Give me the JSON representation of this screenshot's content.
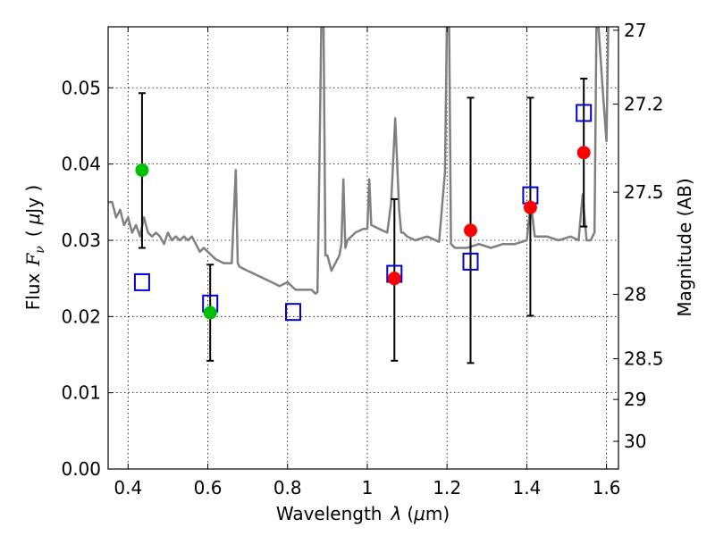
{
  "chart_data": {
    "type": "scatter",
    "xlabel": "Wavelength",
    "xlabel_symbol": "λ",
    "xlabel_unit_open": "(",
    "xlabel_unit_mu": "μ",
    "xlabel_unit_rest": "m)",
    "ylabel": "Flux",
    "ylabel_symbol": "F",
    "ylabel_subscript": "ν",
    "ylabel_unit_open": "(",
    "ylabel_unit_mu": "μ",
    "ylabel_unit_rest": "Jy )",
    "y2label": "Magnitude (AB)",
    "xlim": [
      0.35,
      1.63
    ],
    "ylim": [
      0.0,
      0.058
    ],
    "grid": true,
    "x_ticks": [
      0.4,
      0.6,
      0.8,
      1.0,
      1.2,
      1.4,
      1.6
    ],
    "x_tick_labels": [
      "0.4",
      "0.6",
      "0.8",
      "1",
      "1.2",
      "1.4",
      "1.6"
    ],
    "y_ticks": [
      0.0,
      0.01,
      0.02,
      0.03,
      0.04,
      0.05
    ],
    "y_tick_labels": [
      "0.00",
      "0.01",
      "0.02",
      "0.03",
      "0.04",
      "0.05"
    ],
    "y2_ticks": [
      27,
      27.2,
      27.5,
      28,
      28.5,
      29,
      30
    ],
    "y2_tick_labels": [
      "27",
      "27.2",
      "27.5",
      "28",
      "28.5",
      "29",
      "30"
    ],
    "series": [
      {
        "name": "model spectrum",
        "kind": "line",
        "color": "#808080",
        "x": [
          0.35,
          0.36,
          0.37,
          0.38,
          0.39,
          0.4,
          0.41,
          0.42,
          0.43,
          0.44,
          0.45,
          0.46,
          0.47,
          0.48,
          0.49,
          0.5,
          0.51,
          0.52,
          0.53,
          0.54,
          0.55,
          0.56,
          0.57,
          0.58,
          0.59,
          0.6,
          0.62,
          0.64,
          0.66,
          0.67,
          0.675,
          0.68,
          0.7,
          0.72,
          0.74,
          0.76,
          0.78,
          0.8,
          0.82,
          0.84,
          0.86,
          0.87,
          0.875,
          0.88,
          0.885,
          0.89,
          0.895,
          0.9,
          0.905,
          0.91,
          0.92,
          0.93,
          0.935,
          0.94,
          0.945,
          0.95,
          0.97,
          0.99,
          1.0,
          1.005,
          1.01,
          1.03,
          1.05,
          1.06,
          1.07,
          1.08,
          1.085,
          1.09,
          1.1,
          1.12,
          1.15,
          1.18,
          1.195,
          1.2,
          1.205,
          1.21,
          1.22,
          1.25,
          1.28,
          1.31,
          1.34,
          1.37,
          1.4,
          1.41,
          1.42,
          1.45,
          1.48,
          1.51,
          1.53,
          1.54,
          1.55,
          1.56,
          1.57,
          1.575,
          1.58,
          1.59,
          1.6,
          1.605,
          1.61,
          1.62,
          1.63
        ],
        "y": [
          0.035,
          0.035,
          0.033,
          0.034,
          0.032,
          0.033,
          0.031,
          0.032,
          0.0305,
          0.033,
          0.031,
          0.0305,
          0.031,
          0.0305,
          0.0295,
          0.031,
          0.03,
          0.0305,
          0.03,
          0.0305,
          0.03,
          0.0305,
          0.0295,
          0.0285,
          0.029,
          0.0285,
          0.0275,
          0.027,
          0.027,
          0.0392,
          0.027,
          0.0265,
          0.026,
          0.0255,
          0.025,
          0.0245,
          0.024,
          0.0245,
          0.0235,
          0.0235,
          0.0235,
          0.023,
          0.0232,
          0.04,
          0.06,
          0.06,
          0.028,
          0.028,
          0.027,
          0.026,
          0.027,
          0.028,
          0.0295,
          0.038,
          0.029,
          0.03,
          0.031,
          0.0315,
          0.0315,
          0.038,
          0.032,
          0.0315,
          0.031,
          0.035,
          0.046,
          0.034,
          0.031,
          0.031,
          0.0305,
          0.03,
          0.0305,
          0.0298,
          0.039,
          0.06,
          0.06,
          0.0295,
          0.029,
          0.029,
          0.0295,
          0.029,
          0.0295,
          0.0295,
          0.03,
          0.035,
          0.0305,
          0.0305,
          0.03,
          0.0305,
          0.03,
          0.036,
          0.03,
          0.03,
          0.031,
          0.06,
          0.058,
          0.05,
          0.043,
          0.06,
          0.06,
          0.06,
          0.06
        ]
      },
      {
        "name": "observed (green)",
        "kind": "points",
        "color": "#00bf00",
        "x": [
          0.435,
          0.606
        ],
        "y": [
          0.0392,
          0.0205
        ]
      },
      {
        "name": "observed (red)",
        "kind": "points",
        "color": "#ff0000",
        "x": [
          1.068,
          1.259,
          1.409,
          1.543
        ],
        "y": [
          0.025,
          0.0313,
          0.0343,
          0.0415
        ]
      },
      {
        "name": "error bars",
        "kind": "errorbars",
        "color": "#000000",
        "x": [
          0.435,
          0.606,
          1.068,
          1.259,
          1.409,
          1.543
        ],
        "ylow": [
          0.029,
          0.0142,
          0.0142,
          0.0139,
          0.0201,
          0.0318
        ],
        "yhigh": [
          0.0493,
          0.0268,
          0.0354,
          0.0487,
          0.0487,
          0.0512
        ]
      },
      {
        "name": "model (blue squares)",
        "kind": "squares",
        "color": "#0000cc",
        "x": [
          0.435,
          0.606,
          0.814,
          1.068,
          1.259,
          1.409,
          1.543
        ],
        "y": [
          0.0245,
          0.0217,
          0.0206,
          0.0256,
          0.0272,
          0.0359,
          0.0467
        ]
      }
    ]
  }
}
